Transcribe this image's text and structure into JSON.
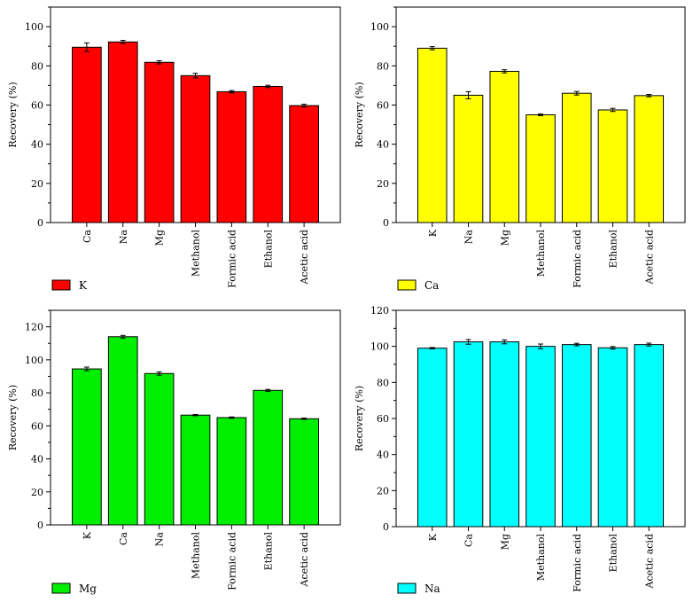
{
  "chart_data": [
    {
      "type": "bar",
      "title": "",
      "xlabel": "",
      "ylabel": "Recovery (%)",
      "ylim": [
        0,
        110
      ],
      "yticks": [
        0,
        20,
        40,
        60,
        80,
        100
      ],
      "categories": [
        "Ca",
        "Na",
        "Mg",
        "Methanol",
        "Formic acid",
        "Ethanol",
        "Acetic acid"
      ],
      "values": [
        89.5,
        92.2,
        81.8,
        75,
        66.8,
        69.5,
        59.7
      ],
      "errors": [
        2.2,
        0.8,
        0.8,
        1.2,
        0.6,
        0.6,
        0.7
      ],
      "legend": "K",
      "color": "#ff0000"
    },
    {
      "type": "bar",
      "title": "",
      "xlabel": "",
      "ylabel": "Recovery (%)",
      "ylim": [
        0,
        110
      ],
      "yticks": [
        0,
        20,
        40,
        60,
        80,
        100
      ],
      "categories": [
        "K",
        "Na",
        "Mg",
        "Methanol",
        "Formic acid",
        "Ethanol",
        "Acetic acid"
      ],
      "values": [
        89,
        65,
        77.2,
        55,
        66,
        57.5,
        64.8
      ],
      "errors": [
        0.8,
        1.8,
        0.8,
        0.4,
        0.9,
        0.8,
        0.6
      ],
      "legend": "Ca",
      "color": "#ffff00"
    },
    {
      "type": "bar",
      "title": "",
      "xlabel": "",
      "ylabel": "Recovery (%)",
      "ylim": [
        0,
        130
      ],
      "yticks": [
        0,
        20,
        40,
        60,
        80,
        100,
        120
      ],
      "categories": [
        "K",
        "Ca",
        "Na",
        "Methanol",
        "Formic acid",
        "Ethanol",
        "Acetic acid"
      ],
      "values": [
        94.5,
        114,
        91.7,
        66.5,
        65,
        81.5,
        64.3
      ],
      "errors": [
        1.1,
        0.8,
        1.0,
        0.4,
        0.4,
        0.6,
        0.4
      ],
      "legend": "Mg",
      "color": "#00ee00"
    },
    {
      "type": "bar",
      "title": "",
      "xlabel": "",
      "ylabel": "Recovery (%)",
      "ylim": [
        0,
        120
      ],
      "yticks": [
        0,
        20,
        40,
        60,
        80,
        100,
        120
      ],
      "categories": [
        "K",
        "Ca",
        "Mg",
        "Methanol",
        "Formic acid",
        "Ethanol",
        "Acetic acid"
      ],
      "values": [
        99,
        102.5,
        102.5,
        100,
        101,
        99.2,
        101
      ],
      "errors": [
        0.4,
        1.3,
        1.1,
        1.3,
        0.7,
        0.7,
        0.8
      ],
      "legend": "Na",
      "color": "#00ffff"
    }
  ]
}
